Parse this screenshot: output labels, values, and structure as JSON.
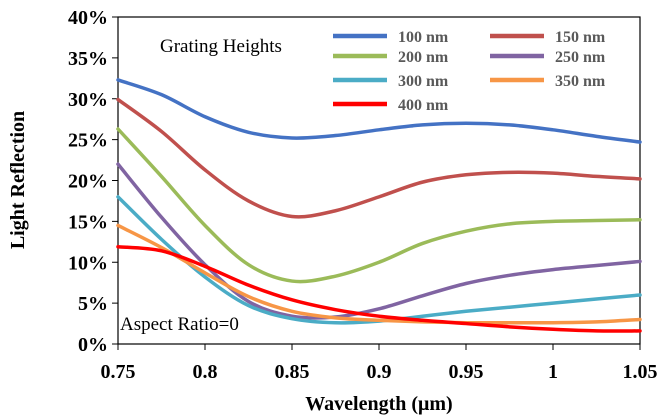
{
  "chart_data": {
    "type": "line",
    "xlabel": "Wavelength (μm)",
    "ylabel": "Light Reflection",
    "xlim": [
      0.75,
      1.05
    ],
    "ylim": [
      0,
      40
    ],
    "xticks": [
      "0.75",
      "0.8",
      "0.85",
      "0.9",
      "0.95",
      "1",
      "1.05"
    ],
    "yticks": [
      "0%",
      "5%",
      "10%",
      "15%",
      "20%",
      "25%",
      "30%",
      "35%",
      "40%"
    ],
    "legend_title": "Grating Heights",
    "annotation": "Aspect Ratio=0",
    "grid": false,
    "legend_position": "top-right",
    "x": [
      0.75,
      0.775,
      0.8,
      0.825,
      0.85,
      0.875,
      0.9,
      0.925,
      0.95,
      0.975,
      1.0,
      1.025,
      1.05
    ],
    "series": [
      {
        "name": "100 nm",
        "color": "#4472C4",
        "values": [
          32.3,
          30.5,
          27.8,
          25.9,
          25.2,
          25.5,
          26.2,
          26.8,
          27.0,
          26.8,
          26.2,
          25.4,
          24.7
        ]
      },
      {
        "name": "150 nm",
        "color": "#C0504D",
        "values": [
          29.9,
          26.0,
          21.3,
          17.5,
          15.6,
          16.3,
          18.0,
          19.8,
          20.7,
          21.0,
          20.9,
          20.5,
          20.2
        ]
      },
      {
        "name": "200 nm",
        "color": "#9BBB59",
        "values": [
          26.3,
          20.5,
          14.5,
          9.7,
          7.7,
          8.3,
          10.0,
          12.3,
          13.8,
          14.7,
          15.0,
          15.1,
          15.2
        ]
      },
      {
        "name": "250 nm",
        "color": "#8064A2",
        "values": [
          22.0,
          15.5,
          9.7,
          5.2,
          3.4,
          3.3,
          4.3,
          5.9,
          7.4,
          8.4,
          9.1,
          9.6,
          10.1
        ]
      },
      {
        "name": "300 nm",
        "color": "#4BACC6",
        "values": [
          18.0,
          12.8,
          8.2,
          4.7,
          3.1,
          2.6,
          2.8,
          3.4,
          4.0,
          4.5,
          5.0,
          5.5,
          6.0
        ]
      },
      {
        "name": "350 nm",
        "color": "#F79646",
        "values": [
          14.5,
          11.8,
          8.7,
          5.8,
          4.0,
          3.2,
          2.9,
          2.7,
          2.6,
          2.6,
          2.6,
          2.7,
          3.0
        ]
      },
      {
        "name": "400 nm",
        "color": "#FF0000",
        "values": [
          11.9,
          11.4,
          9.5,
          7.2,
          5.4,
          4.2,
          3.4,
          2.9,
          2.5,
          2.1,
          1.8,
          1.6,
          1.6
        ]
      }
    ]
  }
}
